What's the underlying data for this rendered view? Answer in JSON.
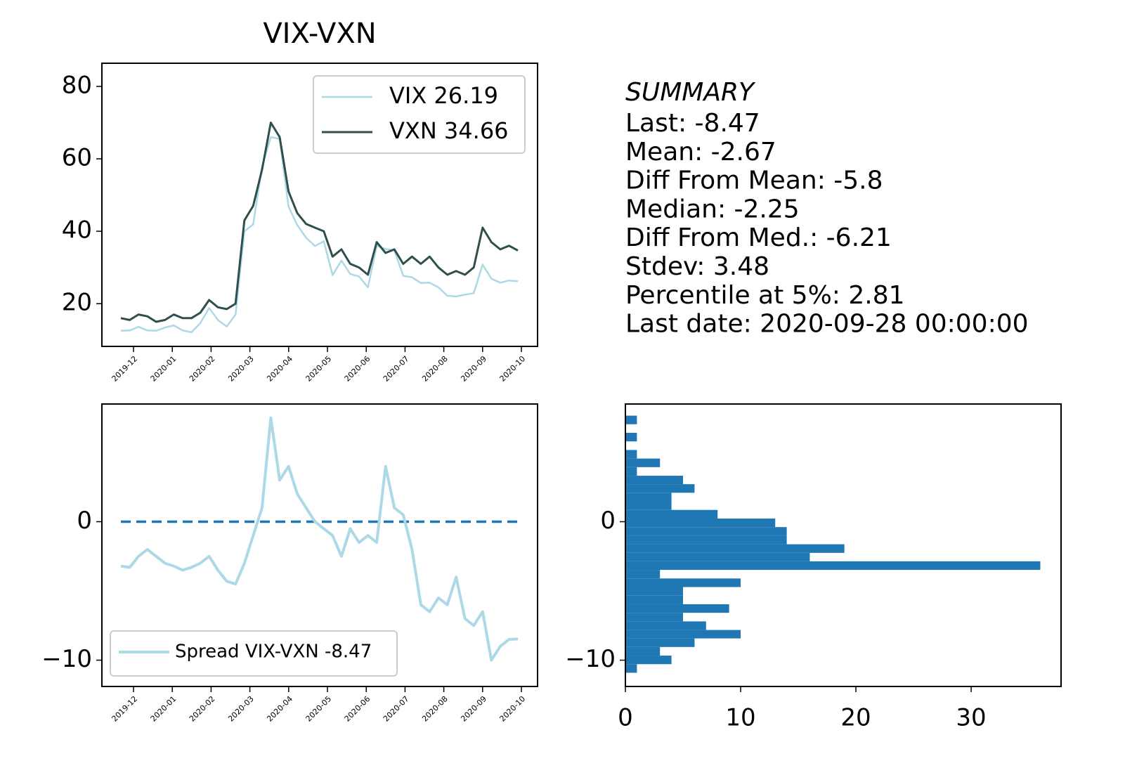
{
  "chart_data": [
    {
      "type": "line",
      "title": "VIX-VXN",
      "legend": "upper right",
      "series": [
        {
          "name": "VIX 26.19",
          "color": "#add8e6",
          "width": 2.5,
          "values": [
            12.5,
            12.6,
            13.6,
            12.6,
            12.5,
            13.4,
            14,
            12.6,
            12.1,
            14.6,
            18.8,
            15.5,
            13.7,
            17,
            40,
            41.9,
            57.8,
            66,
            65.5,
            46.8,
            41.7,
            38.2,
            35.9,
            37.2,
            27.9,
            31.9,
            28.2,
            27.5,
            24.5,
            36,
            35.1,
            34.7,
            27.7,
            27.3,
            25.7,
            25.8,
            24.5,
            22.2,
            22,
            22.5,
            22.9,
            30.8,
            26.9,
            25.8,
            26.4,
            26.19
          ]
        },
        {
          "name": "VXN 34.66",
          "color": "#2f4f4f",
          "width": 3,
          "values": [
            16,
            15.5,
            17,
            16.5,
            15,
            15.5,
            17,
            16,
            16,
            17.5,
            21,
            19,
            18.5,
            20,
            43,
            47,
            57,
            70,
            66,
            51,
            45,
            42,
            41,
            40,
            33,
            35,
            31,
            30,
            28,
            37,
            34,
            35,
            31,
            33,
            31,
            33,
            30,
            28,
            29,
            28,
            30,
            41,
            37,
            35,
            36,
            34.66
          ]
        }
      ],
      "ylim": [
        8.2,
        86.4
      ],
      "yticks": [
        20,
        40,
        60,
        80
      ],
      "xticks": [
        "2019-12",
        "2020-01",
        "2020-02",
        "2020-03",
        "2020-04",
        "2020-05",
        "2020-06",
        "2020-07",
        "2020-08",
        "2020-09",
        "2020-10"
      ]
    },
    {
      "type": "line",
      "legend": "lower left",
      "series": [
        {
          "name": "Spread VIX-VXN -8.47",
          "color": "#add8e6",
          "width": 4,
          "values": [
            -3.2,
            -3.3,
            -2.5,
            -2,
            -2.5,
            -3,
            -3.2,
            -3.5,
            -3.3,
            -3,
            -2.5,
            -3.5,
            -4.3,
            -4.5,
            -3,
            -1,
            1,
            7.5,
            3,
            4,
            2,
            1,
            0,
            -0.5,
            -1,
            -2.5,
            -0.5,
            -1.5,
            -1,
            -1.5,
            4,
            1,
            0.5,
            -2,
            -6,
            -6.5,
            -5.5,
            -6,
            -4,
            -7,
            -7.5,
            -6.5,
            -10,
            -9,
            -8.5,
            -8.47
          ]
        }
      ],
      "hline": {
        "value": 0,
        "color": "#1f77b4",
        "style": "dashed"
      },
      "ylim": [
        -11.9,
        8.5
      ],
      "yticks": [
        0,
        {
          "value": -10,
          "label": "−10"
        }
      ],
      "xticks": [
        "2019-12",
        "2020-01",
        "2020-02",
        "2020-03",
        "2020-04",
        "2020-05",
        "2020-06",
        "2020-07",
        "2020-08",
        "2020-09",
        "2020-10"
      ]
    },
    {
      "type": "histogram",
      "orientation": "horizontal",
      "color": "#1f77b4",
      "bins": [
        -10.91,
        -10.29,
        -9.67,
        -9.05,
        -8.43,
        -7.82,
        -7.2,
        -6.58,
        -5.96,
        -5.34,
        -4.72,
        -4.1,
        -3.48,
        -2.86,
        -2.25,
        -1.63,
        -1.01,
        -0.39,
        0.23,
        0.85,
        1.47,
        2.09,
        2.71,
        3.32,
        3.94,
        4.56,
        5.18,
        5.8,
        6.42,
        7.04,
        7.66
      ],
      "counts": [
        1,
        4,
        3,
        6,
        10,
        7,
        5,
        9,
        5,
        5,
        10,
        3,
        36,
        16,
        19,
        14,
        14,
        13,
        8,
        4,
        4,
        6,
        5,
        1,
        3,
        1,
        0,
        1,
        0,
        1
      ],
      "ylim": [
        -11.9,
        8.5
      ],
      "yticks": [
        0,
        {
          "value": -10,
          "label": "−10"
        }
      ],
      "xlim": [
        0,
        37.8
      ],
      "xticks": [
        0,
        10,
        20,
        30
      ]
    }
  ],
  "summary": {
    "title": "SUMMARY",
    "lines": [
      "Last: -8.47",
      "Mean: -2.67",
      "Diff From Mean: -5.8",
      "Median: -2.25",
      "Diff From Med.: -6.21",
      "Stdev: 3.48",
      "Percentile at 5%: 2.81",
      "Last date: 2020-09-28 00:00:00"
    ]
  }
}
